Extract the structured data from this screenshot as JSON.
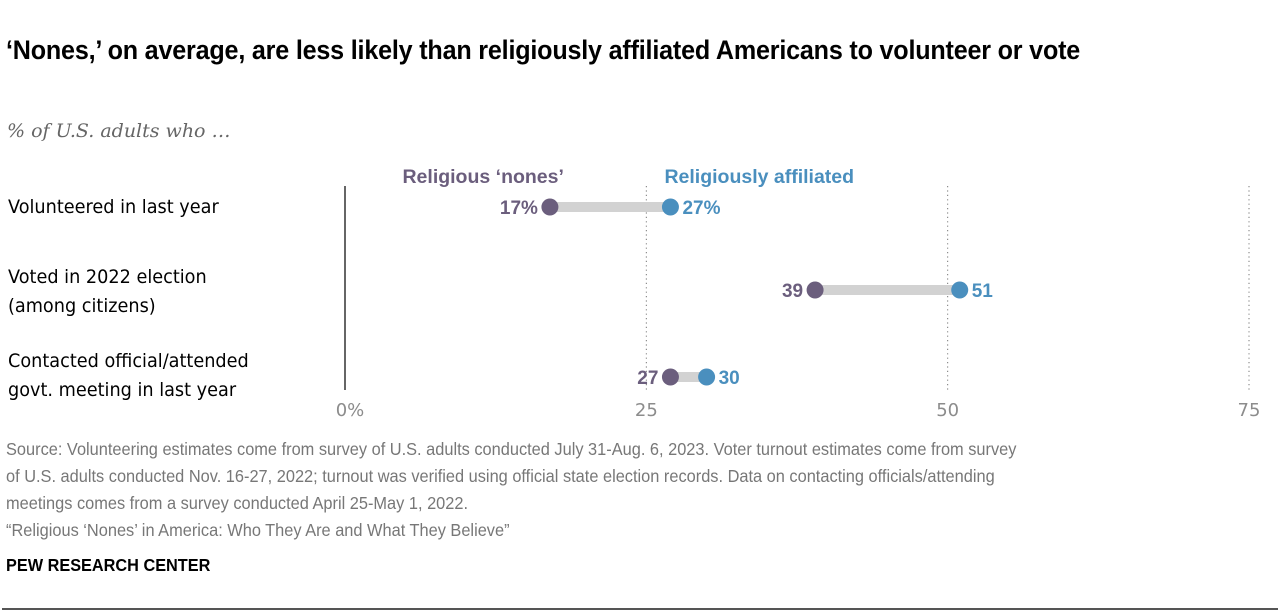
{
  "header": {
    "title": "‘Nones,’ on average, are less likely than religiously affiliated Americans to volunteer or vote",
    "subtitle": "% of U.S. adults who …"
  },
  "footer": {
    "source_lines": [
      "Source: Volunteering estimates come from survey of U.S. adults conducted July 31-Aug. 6, 2023. Voter turnout estimates come from survey",
      "of U.S. adults conducted Nov. 16-27, 2022; turnout was verified using official state election records. Data on contacting officials/attending",
      "meetings comes from a survey conducted April 25-May 1, 2022.",
      "“Religious ‘Nones’ in America: Who They Are and What They Believe”"
    ],
    "brand": "PEW RESEARCH CENTER"
  },
  "chart_data": {
    "type": "dot-plot",
    "title": "‘Nones,’ on average, are less likely than religiously affiliated Americans to volunteer or vote",
    "subtitle": "% of U.S. adults who …",
    "xlabel": "",
    "ylabel": "",
    "xlim": [
      0,
      75
    ],
    "x_ticks": [
      0,
      25,
      50,
      75
    ],
    "x_tick_labels": [
      "0%",
      "25",
      "50",
      "75"
    ],
    "grid": "dotted vertical lines at 25, 50, 75",
    "legend_placement": "top, above first row",
    "categories": [
      [
        "Volunteered in last year"
      ],
      [
        "Voted in 2022 election",
        "(among citizens)"
      ],
      [
        "Contacted official/attended",
        "govt. meeting in last year"
      ]
    ],
    "series": [
      {
        "name": "Religious ‘nones’",
        "color": "#6b5e7d",
        "values": [
          17,
          39,
          27
        ],
        "labels": [
          "17%",
          "39",
          "27"
        ]
      },
      {
        "name": "Religiously affiliated",
        "color": "#4a8fbe",
        "values": [
          27,
          51,
          30
        ],
        "labels": [
          "27%",
          "51",
          "30"
        ]
      }
    ],
    "connector_color": "#d2d2d2"
  }
}
